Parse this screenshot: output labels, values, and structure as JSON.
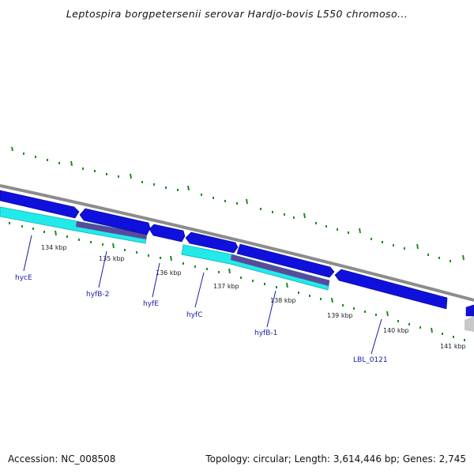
{
  "title": "Leptospira borgpetersenii serovar Hardjo-bovis L550 chromoso...",
  "footer": {
    "accession": "Accession: NC_008508",
    "summary": "Topology: circular; Length: 3,614,446 bp; Genes: 2,745"
  },
  "scale_labels": [
    "134 kbp",
    "135 kbp",
    "136 kbp",
    "137 kbp",
    "138 kbp",
    "139 kbp",
    "140 kbp",
    "141 kbp"
  ],
  "genes": [
    {
      "label": "hycE",
      "strand": "forward"
    },
    {
      "label": "hyfB-2",
      "strand": "forward"
    },
    {
      "label": "hyfE",
      "strand": "forward"
    },
    {
      "label": "hyfC",
      "strand": "forward"
    },
    {
      "label": "hyfB-1",
      "strand": "forward"
    },
    {
      "label": "LBL_0121",
      "strand": "forward"
    }
  ],
  "colors": {
    "gene": "#1010dd",
    "cds": "#22eaea",
    "feature": "#5a4a9a",
    "backbone": "#8c8c8c",
    "tick": "#1e8c1e",
    "label": "#1a1aa8"
  }
}
